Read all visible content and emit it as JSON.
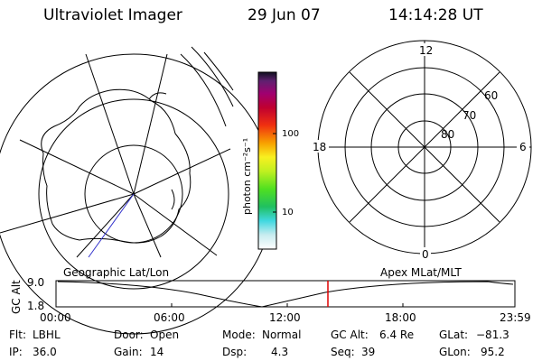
{
  "header": {
    "title": "Ultraviolet Imager",
    "date": "29 Jun 07",
    "time": "14:14:28 UT"
  },
  "colorbar": {
    "unit_label": "photon cm⁻²s⁻¹",
    "ticks": [
      "100",
      "10"
    ]
  },
  "polar_plot": {
    "mlt_labels": {
      "top": "12",
      "left": "18",
      "right": "6",
      "bottom": "0"
    },
    "lat_labels": [
      "60",
      "70",
      "80"
    ]
  },
  "orbit": {
    "left_caption": "Geographic Lat/Lon",
    "right_caption": "Apex MLat/MLT",
    "y_axis_label": "GC Alt",
    "y_ticks": [
      "9.0",
      "1.8"
    ],
    "x_ticks": [
      "00:00",
      "06:00",
      "12:00",
      "18:00",
      "23:59"
    ]
  },
  "info": {
    "row1": [
      {
        "label": "Flt:",
        "value": "LBHL"
      },
      {
        "label": "Door:",
        "value": "Open"
      },
      {
        "label": "Mode:",
        "value": "Normal"
      },
      {
        "label": "GC Alt:",
        "value": "6.4 Re"
      },
      {
        "label": "GLat:",
        "value": "−81.3"
      }
    ],
    "row2": [
      {
        "label": "IP:",
        "value": "36.0"
      },
      {
        "label": "Gain:",
        "value": "14"
      },
      {
        "label": "Dsp:",
        "value": "4.3"
      },
      {
        "label": "Seq:",
        "value": "39"
      },
      {
        "label": "GLon:",
        "value": "95.2"
      }
    ]
  },
  "colors": {
    "background": "#ffffff",
    "ink": "#000000",
    "cursor": "#e00000",
    "meridian": "#3333cc"
  }
}
